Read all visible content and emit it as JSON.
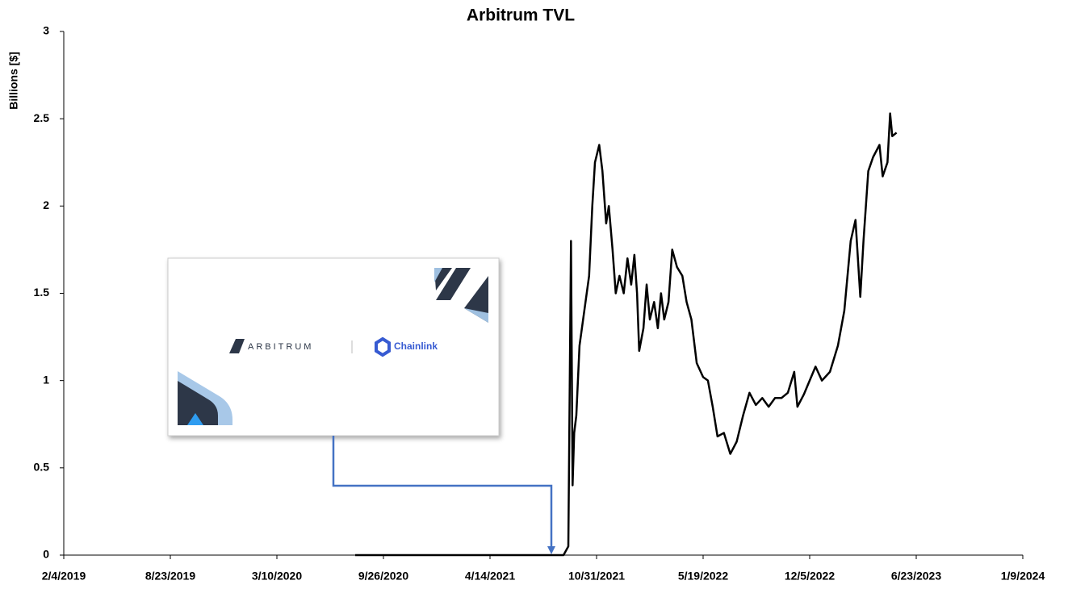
{
  "chart_data": {
    "type": "line",
    "title": "Arbitrum TVL",
    "y_label": "Billions [$]",
    "xlim": [
      "2019-02-04",
      "2024-01-09"
    ],
    "xticks": [
      {
        "value": "2019-02-04",
        "label": "2/4/2019"
      },
      {
        "value": "2019-08-23",
        "label": "8/23/2019"
      },
      {
        "value": "2020-03-10",
        "label": "3/10/2020"
      },
      {
        "value": "2020-09-26",
        "label": "9/26/2020"
      },
      {
        "value": "2021-04-14",
        "label": "4/14/2021"
      },
      {
        "value": "2021-10-31",
        "label": "10/31/2021"
      },
      {
        "value": "2022-05-19",
        "label": "5/19/2022"
      },
      {
        "value": "2022-12-05",
        "label": "12/5/2022"
      },
      {
        "value": "2023-06-23",
        "label": "6/23/2023"
      },
      {
        "value": "2024-01-09",
        "label": "1/9/2024"
      }
    ],
    "ylim": [
      0,
      3
    ],
    "yticks": [
      0,
      0.5,
      1,
      1.5,
      2,
      2.5,
      3
    ],
    "grid": false,
    "x": [
      "2020-08-04",
      "2021-08-30",
      "2021-09-08",
      "2021-09-13",
      "2021-09-16",
      "2021-09-19",
      "2021-09-23",
      "2021-09-29",
      "2021-10-08",
      "2021-10-17",
      "2021-10-23",
      "2021-10-28",
      "2021-11-05",
      "2021-11-11",
      "2021-11-18",
      "2021-11-23",
      "2021-11-30",
      "2021-12-06",
      "2021-12-13",
      "2021-12-21",
      "2021-12-28",
      "2022-01-04",
      "2022-01-10",
      "2022-01-15",
      "2022-01-19",
      "2022-01-27",
      "2022-02-02",
      "2022-02-08",
      "2022-02-16",
      "2022-02-23",
      "2022-03-01",
      "2022-03-07",
      "2022-03-15",
      "2022-03-22",
      "2022-03-31",
      "2022-04-10",
      "2022-04-18",
      "2022-04-27",
      "2022-05-07",
      "2022-05-19",
      "2022-05-28",
      "2022-06-06",
      "2022-06-15",
      "2022-06-27",
      "2022-07-09",
      "2022-07-21",
      "2022-08-02",
      "2022-08-14",
      "2022-08-26",
      "2022-09-07",
      "2022-09-19",
      "2022-10-01",
      "2022-10-13",
      "2022-10-25",
      "2022-11-06",
      "2022-11-12",
      "2022-11-24",
      "2022-12-05",
      "2022-12-16",
      "2022-12-28",
      "2023-01-12",
      "2023-01-27",
      "2023-02-08",
      "2023-02-20",
      "2023-03-01",
      "2023-03-10",
      "2023-03-16",
      "2023-03-25",
      "2023-04-03",
      "2023-04-15",
      "2023-04-21",
      "2023-04-30",
      "2023-05-05",
      "2023-05-09",
      "2023-05-17"
    ],
    "series": [
      {
        "name": "Arbitrum TVL",
        "color": "#000000",
        "values": [
          0,
          0,
          0.05,
          1.8,
          0.4,
          0.7,
          0.8,
          1.2,
          1.4,
          1.6,
          2.0,
          2.25,
          2.35,
          2.2,
          1.9,
          2.0,
          1.75,
          1.5,
          1.6,
          1.5,
          1.7,
          1.55,
          1.72,
          1.5,
          1.17,
          1.3,
          1.55,
          1.35,
          1.45,
          1.3,
          1.5,
          1.35,
          1.45,
          1.75,
          1.65,
          1.6,
          1.45,
          1.35,
          1.1,
          1.02,
          1.0,
          0.85,
          0.68,
          0.7,
          0.58,
          0.65,
          0.8,
          0.93,
          0.86,
          0.9,
          0.85,
          0.9,
          0.9,
          0.93,
          1.05,
          0.85,
          0.92,
          1.0,
          1.08,
          1.0,
          1.05,
          1.2,
          1.4,
          1.8,
          1.92,
          1.48,
          1.8,
          2.2,
          2.28,
          2.35,
          2.17,
          2.25,
          2.53,
          2.4,
          2.42
        ]
      }
    ],
    "inset": {
      "texts": [
        "ARBITRUM",
        "Chainlink"
      ]
    }
  }
}
